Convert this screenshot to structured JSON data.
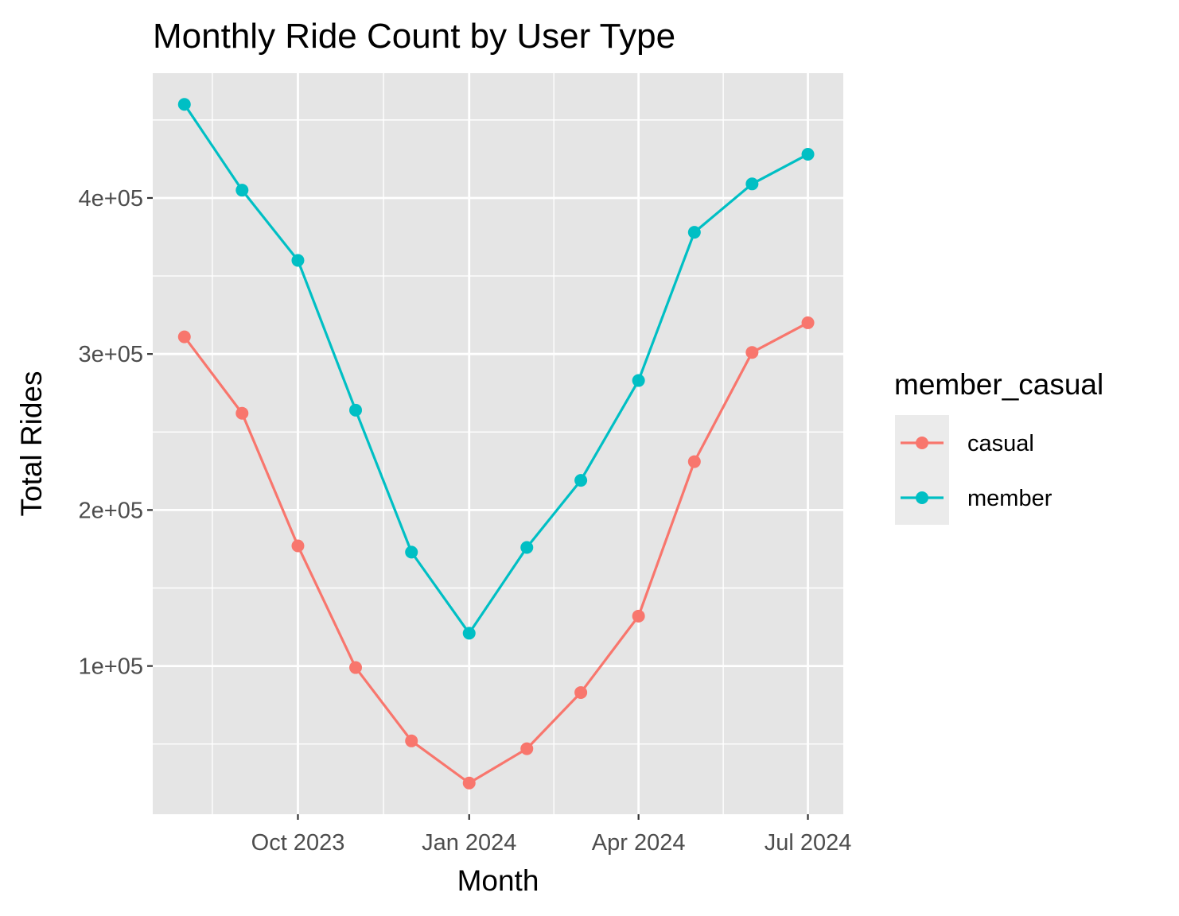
{
  "chart_data": {
    "type": "line",
    "title": "Monthly Ride Count by User Type",
    "xlabel": "Month",
    "ylabel": "Total Rides",
    "x": [
      "2023-08",
      "2023-09",
      "2023-10",
      "2023-11",
      "2023-12",
      "2024-01",
      "2024-02",
      "2024-03",
      "2024-04",
      "2024-05",
      "2024-06",
      "2024-07"
    ],
    "series": [
      {
        "name": "casual",
        "color": "#f8766d",
        "values": [
          311000,
          262000,
          177000,
          99000,
          52000,
          25000,
          47000,
          83000,
          132000,
          231000,
          301000,
          320000
        ]
      },
      {
        "name": "member",
        "color": "#00bfc4",
        "values": [
          460000,
          405000,
          360000,
          264000,
          173000,
          121000,
          176000,
          219000,
          283000,
          378000,
          409000,
          428000
        ]
      }
    ],
    "xticks": [
      {
        "date": "2023-10",
        "label": "Oct 2023"
      },
      {
        "date": "2024-01",
        "label": "Jan 2024"
      },
      {
        "date": "2024-04",
        "label": "Apr 2024"
      },
      {
        "date": "2024-07",
        "label": "Jul 2024"
      }
    ],
    "yticks": [
      {
        "value": 100000,
        "label": "1e+05"
      },
      {
        "value": 200000,
        "label": "2e+05"
      },
      {
        "value": 300000,
        "label": "3e+05"
      },
      {
        "value": 400000,
        "label": "4e+05"
      }
    ],
    "ylim": [
      5000,
      480000
    ],
    "xlim": [
      "2023-07-15",
      "2024-07-20"
    ],
    "grid": true,
    "panel_background": "#e5e5e5",
    "grid_color": "#ffffff",
    "legend": {
      "title": "member_casual",
      "position": "right",
      "background": "#ebebeb"
    }
  }
}
